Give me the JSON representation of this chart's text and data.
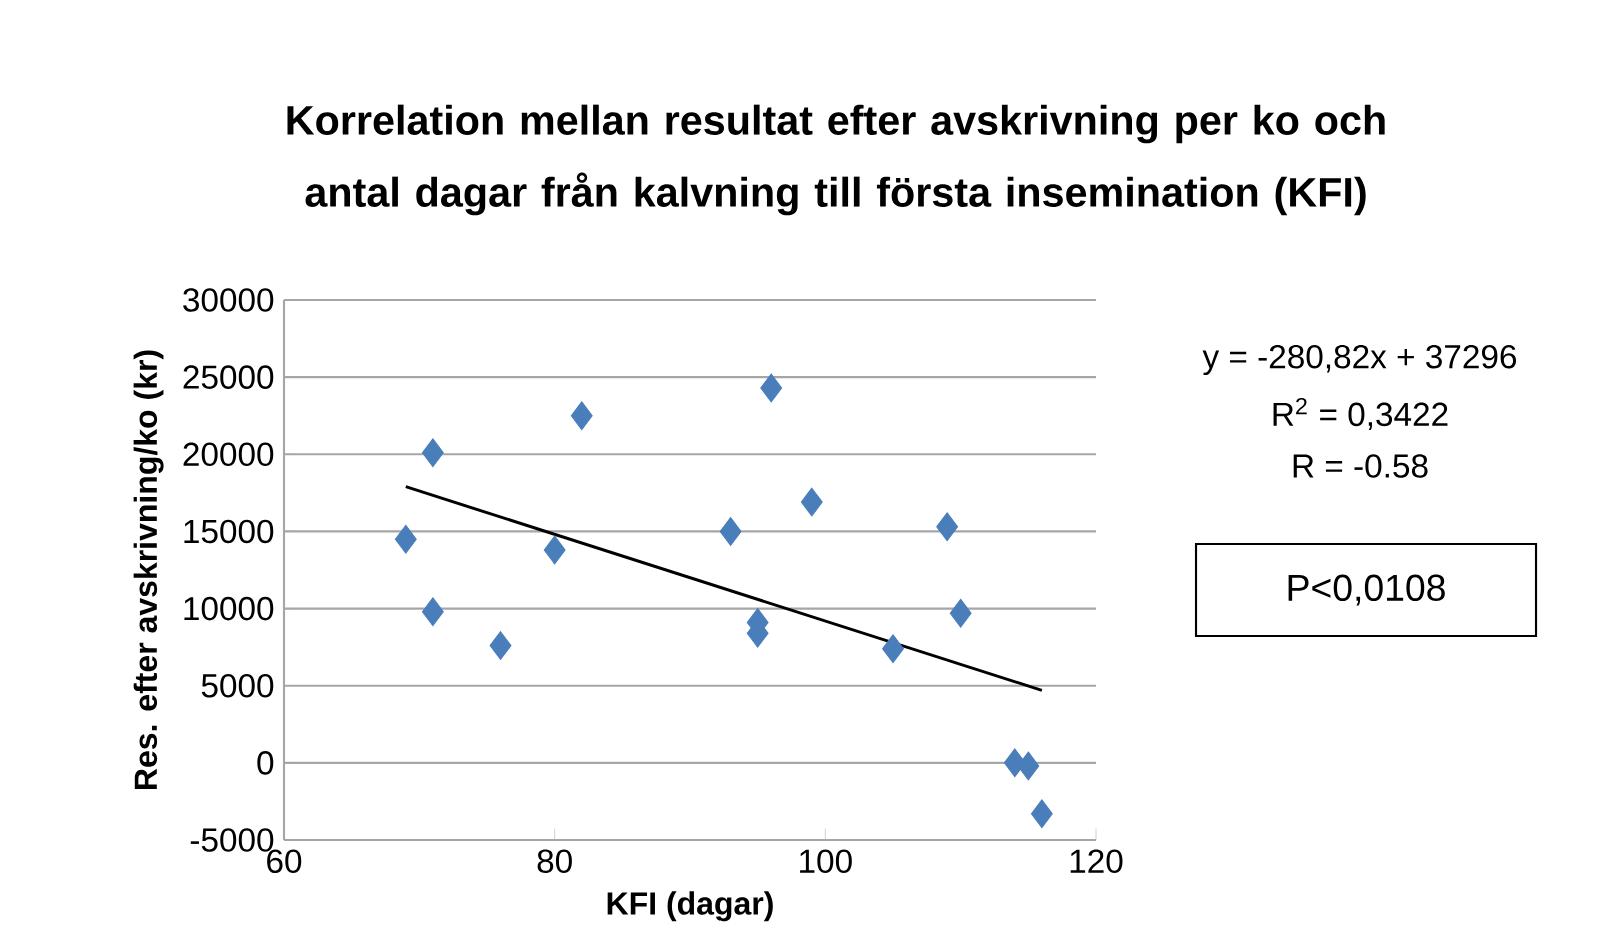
{
  "chart_data": {
    "type": "scatter",
    "title": "Korrelation mellan resultat efter avskrivning per ko och antal dagar från kalvning till första insemination (KFI)",
    "xlabel": "KFI (dagar)",
    "ylabel": "Res. efter  avskrivning/ko (kr)",
    "series": [
      {
        "color": "#4a7ebb",
        "marker": "diamond",
        "x": [
          69,
          71,
          71,
          76,
          80,
          82,
          93,
          95,
          95,
          96,
          99,
          105,
          109,
          110,
          114,
          115,
          116
        ],
        "values": [
          14500,
          20100,
          9800,
          7600,
          13800,
          22500,
          15000,
          9100,
          8400,
          24300,
          16900,
          7400,
          15300,
          9700,
          0,
          -200,
          -3300
        ]
      },
      {
        "type": "line",
        "color": "#000000",
        "x": [
          69,
          116
        ],
        "values": [
          17900,
          4700
        ]
      }
    ],
    "xlim": [
      60,
      120
    ],
    "xticks": [
      60,
      80,
      100,
      120
    ],
    "ylim": [
      -5000,
      30000
    ],
    "yticks": [
      -5000,
      0,
      5000,
      10000,
      15000,
      20000,
      25000,
      30000
    ],
    "grid": "y",
    "annotations": [
      "y = -280,82x + 37296",
      "R$^{2}$ = 0,3422",
      "R = -0.58",
      "P<0,0108"
    ]
  }
}
